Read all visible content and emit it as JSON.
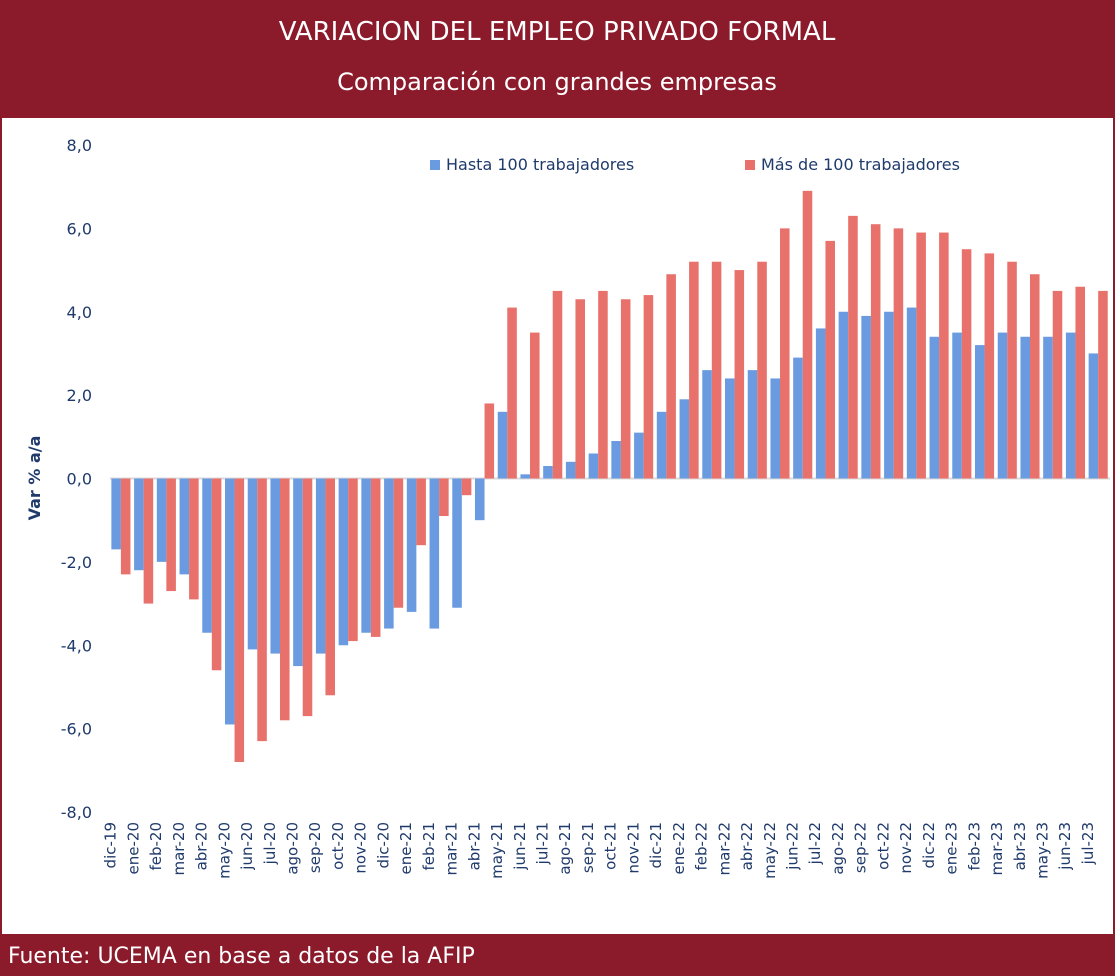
{
  "chart_data": {
    "type": "bar",
    "title": "VARIACION DEL EMPLEO PRIVADO FORMAL",
    "subtitle": "Comparación con grandes empresas",
    "y_label": "Var % a/a",
    "source": "Fuente: UCEMA en base a datos de la AFIP",
    "legend": "top-right",
    "categories": [
      "dic-19",
      "ene-20",
      "feb-20",
      "mar-20",
      "abr-20",
      "may-20",
      "jun-20",
      "jul-20",
      "ago-20",
      "sep-20",
      "oct-20",
      "nov-20",
      "dic-20",
      "ene-21",
      "feb-21",
      "mar-21",
      "abr-21",
      "may-21",
      "jun-21",
      "jul-21",
      "ago-21",
      "sep-21",
      "oct-21",
      "nov-21",
      "dic-21",
      "ene-22",
      "feb-22",
      "mar-22",
      "abr-22",
      "may-22",
      "jun-22",
      "jul-22",
      "ago-22",
      "sep-22",
      "oct-22",
      "nov-22",
      "dic-22",
      "ene-23",
      "feb-23",
      "mar-23",
      "abr-23",
      "may-23",
      "jun-23",
      "jul-23"
    ],
    "series": [
      {
        "name": "Hasta 100 trabajadores",
        "color": "#6a9be0",
        "values": [
          -1.7,
          -2.2,
          -2.0,
          -2.3,
          -3.7,
          -5.9,
          -4.1,
          -4.2,
          -4.5,
          -4.2,
          -4.0,
          -3.7,
          -3.6,
          -3.2,
          -3.6,
          -3.1,
          -1.0,
          1.6,
          0.1,
          0.3,
          0.4,
          0.6,
          0.9,
          1.1,
          1.6,
          1.9,
          2.6,
          2.4,
          2.6,
          2.4,
          2.9,
          3.6,
          4.0,
          3.9,
          4.0,
          4.1,
          3.4,
          3.5,
          3.2,
          3.5,
          3.4,
          3.4,
          3.5,
          3.0
        ]
      },
      {
        "name": "Más de 100 trabajadores",
        "color": "#e8716b",
        "values": [
          -2.3,
          -3.0,
          -2.7,
          -2.9,
          -4.6,
          -6.8,
          -6.3,
          -5.8,
          -5.7,
          -5.2,
          -3.9,
          -3.8,
          -3.1,
          -1.6,
          -0.9,
          -0.4,
          1.8,
          4.1,
          3.5,
          4.5,
          4.3,
          4.5,
          4.3,
          4.4,
          4.9,
          5.2,
          5.2,
          5.0,
          5.2,
          6.0,
          6.9,
          5.7,
          6.3,
          6.1,
          6.0,
          5.9,
          5.9,
          5.5,
          5.4,
          5.2,
          4.9,
          4.5,
          4.6,
          4.5
        ]
      }
    ],
    "ylim": [
      -8,
      8
    ],
    "yticks": [
      {
        "value": -8,
        "label": "-8,0"
      },
      {
        "value": -6,
        "label": "-6,0"
      },
      {
        "value": -4,
        "label": "-4,0"
      },
      {
        "value": -2,
        "label": "-2,0"
      },
      {
        "value": 0,
        "label": "0,0"
      },
      {
        "value": 2,
        "label": "2,0"
      },
      {
        "value": 4,
        "label": "4,0"
      },
      {
        "value": 6,
        "label": "6,0"
      },
      {
        "value": 8,
        "label": "8,0"
      }
    ]
  }
}
